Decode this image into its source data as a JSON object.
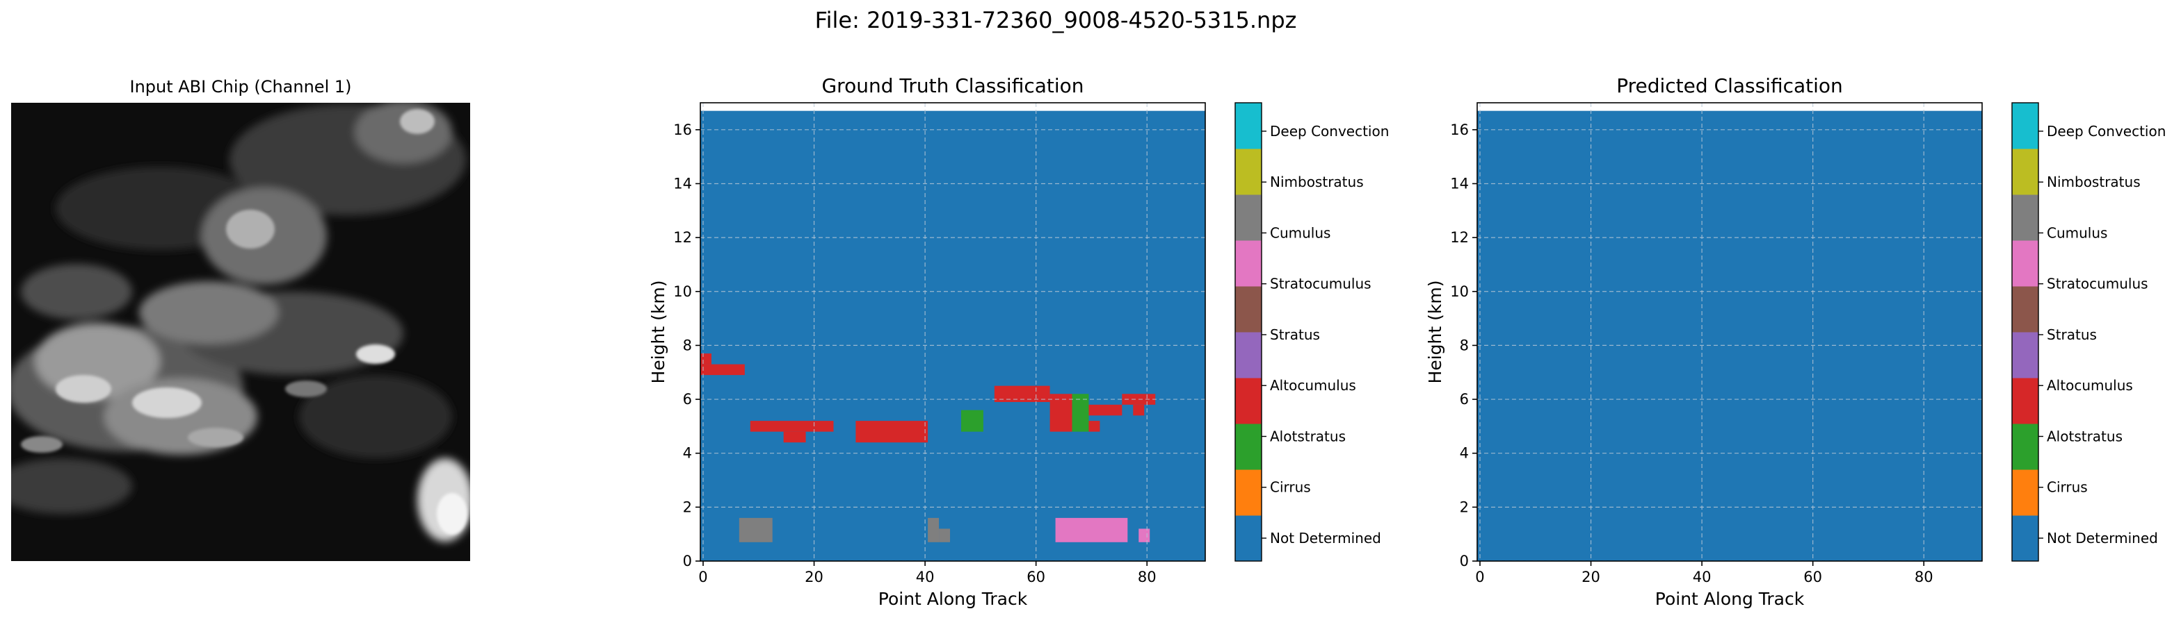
{
  "figure": {
    "suptitle": "File: 2019-331-72360_9008-4520-5315.npz"
  },
  "image_panel": {
    "title": "Input ABI Chip (Channel 1)"
  },
  "colorbar_labels": [
    "Not Determined",
    "Cirrus",
    "Alotstratus",
    "Altocumulus",
    "Stratus",
    "Stratocumulus",
    "Cumulus",
    "Nimbostratus",
    "Deep Convection"
  ],
  "colors": {
    "classes": [
      "#1f77b4",
      "#ff7f0e",
      "#2ca02c",
      "#d62728",
      "#9467bd",
      "#8c564b",
      "#e377c2",
      "#7f7f7f",
      "#bcbd22",
      "#17becf"
    ]
  },
  "chart_data": [
    {
      "type": "heatmap",
      "title": "Ground Truth Classification",
      "xlabel": "Point Along Track",
      "ylabel": "Height (km)",
      "xlim": [
        -0.5,
        90.5
      ],
      "ylim": [
        0,
        17
      ],
      "xticks": [
        0,
        20,
        40,
        60,
        80
      ],
      "yticks": [
        0,
        2,
        4,
        6,
        8,
        10,
        12,
        14,
        16
      ],
      "grid": true,
      "data_top": 16.7,
      "background_class": 0,
      "cells": [
        {
          "x0": -0.5,
          "x1": 7.5,
          "y0": 6.9,
          "y1": 7.3,
          "class": 3
        },
        {
          "x0": -0.5,
          "x1": 1.5,
          "y0": 7.3,
          "y1": 7.7,
          "class": 3
        },
        {
          "x0": 8.5,
          "x1": 23.5,
          "y0": 4.8,
          "y1": 5.2,
          "class": 3
        },
        {
          "x0": 14.5,
          "x1": 18.5,
          "y0": 4.4,
          "y1": 4.8,
          "class": 3
        },
        {
          "x0": 27.5,
          "x1": 40.5,
          "y0": 4.4,
          "y1": 5.2,
          "class": 3
        },
        {
          "x0": 46.5,
          "x1": 50.5,
          "y0": 4.8,
          "y1": 5.6,
          "class": 2
        },
        {
          "x0": 52.5,
          "x1": 62.5,
          "y0": 5.9,
          "y1": 6.5,
          "class": 3
        },
        {
          "x0": 62.5,
          "x1": 66.5,
          "y0": 4.8,
          "y1": 6.2,
          "class": 3
        },
        {
          "x0": 66.5,
          "x1": 69.5,
          "y0": 4.8,
          "y1": 6.2,
          "class": 2
        },
        {
          "x0": 69.5,
          "x1": 71.5,
          "y0": 4.8,
          "y1": 5.2,
          "class": 3
        },
        {
          "x0": 69.5,
          "x1": 75.5,
          "y0": 5.4,
          "y1": 5.8,
          "class": 3
        },
        {
          "x0": 75.5,
          "x1": 81.5,
          "y0": 5.8,
          "y1": 6.2,
          "class": 3
        },
        {
          "x0": 77.5,
          "x1": 79.5,
          "y0": 5.4,
          "y1": 5.8,
          "class": 3
        },
        {
          "x0": 6.5,
          "x1": 12.5,
          "y0": 0.7,
          "y1": 1.6,
          "class": 7
        },
        {
          "x0": 40.5,
          "x1": 42.5,
          "y0": 0.7,
          "y1": 1.6,
          "class": 7
        },
        {
          "x0": 42.5,
          "x1": 44.5,
          "y0": 0.7,
          "y1": 1.2,
          "class": 7
        },
        {
          "x0": 63.5,
          "x1": 76.5,
          "y0": 0.7,
          "y1": 1.6,
          "class": 6
        },
        {
          "x0": 78.5,
          "x1": 80.5,
          "y0": 0.7,
          "y1": 1.2,
          "class": 6
        }
      ]
    },
    {
      "type": "heatmap",
      "title": "Predicted Classification",
      "xlabel": "Point Along Track",
      "ylabel": "Height (km)",
      "xlim": [
        -0.5,
        90.5
      ],
      "ylim": [
        0,
        17
      ],
      "xticks": [
        0,
        20,
        40,
        60,
        80
      ],
      "yticks": [
        0,
        2,
        4,
        6,
        8,
        10,
        12,
        14,
        16
      ],
      "grid": true,
      "data_top": 16.7,
      "background_class": 0,
      "cells": []
    }
  ]
}
